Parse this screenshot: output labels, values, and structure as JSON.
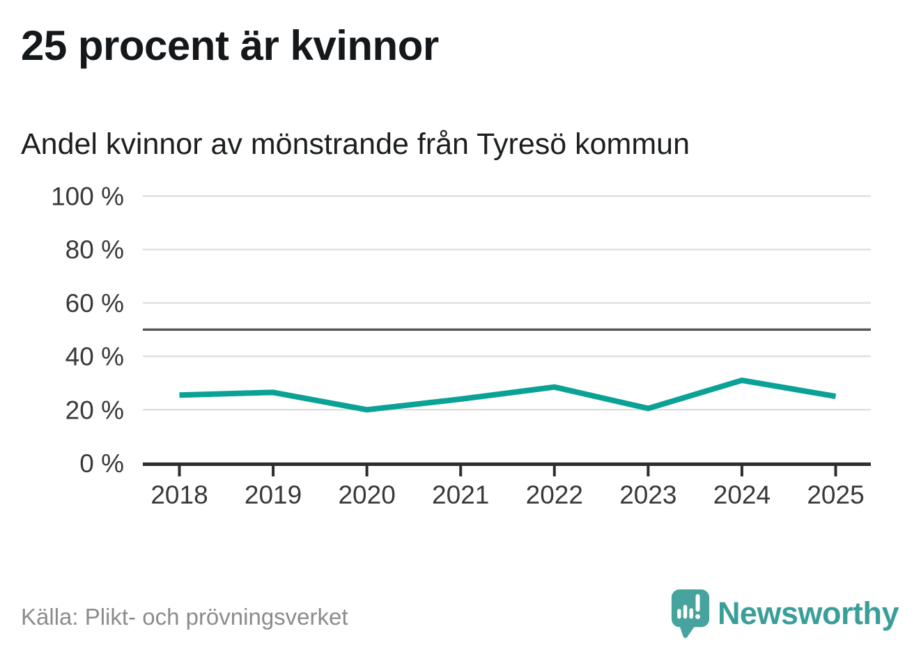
{
  "header": {
    "title": "25 procent är kvinnor",
    "subtitle": "Andel kvinnor av mönstrande från Tyresö kommun"
  },
  "footer": {
    "source": "Källa: Plikt- och prövningsverket",
    "brand": "Newsworthy"
  },
  "colors": {
    "line": "#0aa296",
    "grid": "#e0e0e0",
    "reference_line": "#58595b",
    "axis": "#2e2e2e",
    "tick_text": "#383838",
    "logo_teal": "#46a39d",
    "brand_text": "#3a9e99",
    "source_text": "#8c8c8c"
  },
  "chart_data": {
    "type": "line",
    "title": "25 procent är kvinnor",
    "subtitle": "Andel kvinnor av mönstrande från Tyresö kommun",
    "categories": [
      "2018",
      "2019",
      "2020",
      "2021",
      "2022",
      "2023",
      "2024",
      "2025"
    ],
    "series": [
      {
        "name": "Andel kvinnor av mönstrande",
        "values": [
          25.5,
          26.5,
          20,
          24,
          28.5,
          20.5,
          31,
          25
        ]
      }
    ],
    "unit": "%",
    "ylim": [
      0,
      100
    ],
    "yticks": [
      0,
      20,
      40,
      60,
      80,
      100
    ],
    "ytick_labels": [
      "0 %",
      "20 %",
      "40 %",
      "60 %",
      "80 %",
      "100 %"
    ],
    "reference_line": 50,
    "grid": true,
    "legend": "none",
    "xlabel": "",
    "ylabel": ""
  }
}
